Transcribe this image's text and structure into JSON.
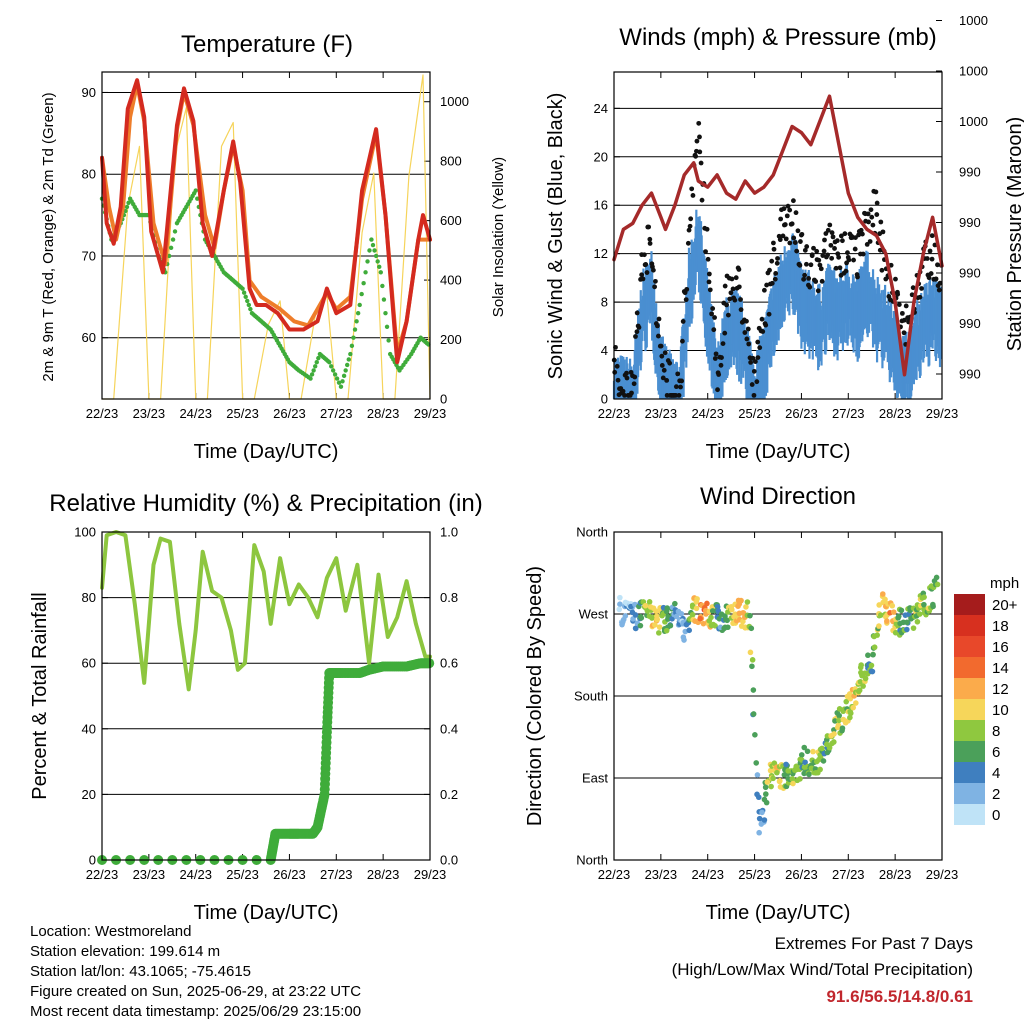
{
  "panels": {
    "temperature": {
      "title": "Temperature (F)",
      "left_label": "2m & 9m T (Red, Orange) & 2m Td (Green)",
      "right_label": "Solar Insolation (Yellow)",
      "x_label": "Time (Day/UTC)"
    },
    "wind": {
      "title": "Winds (mph) & Pressure (mb)",
      "left_label": "Sonic Wind & Gust (Blue, Black)",
      "right_label": "Station Pressure (Maroon)",
      "x_label": "Time (Day/UTC)"
    },
    "humidity": {
      "title": "Relative Humidity (%) & Precipitation (in)",
      "left_label": "Percent & Total Rainfall",
      "x_label": "Time (Day/UTC)"
    },
    "direction": {
      "title": "Wind Direction",
      "left_label": "Direction (Colored By Speed)",
      "x_label": "Time (Day/UTC)"
    }
  },
  "chart_data": [
    {
      "id": "temperature",
      "type": "line",
      "title": "Temperature (F)",
      "xlabel": "Time (Day/UTC)",
      "ylabel": "2m & 9m T (Red, Orange) & 2m Td (Green)",
      "y2label": "Solar Insolation (Yellow)",
      "x_ticks": [
        "22/23",
        "23/23",
        "24/23",
        "25/23",
        "26/23",
        "27/23",
        "28/23",
        "29/23"
      ],
      "xlim": [
        0,
        7
      ],
      "ylim": [
        52.5,
        92.5
      ],
      "y_ticks": [
        60,
        70,
        80,
        90
      ],
      "y2lim": [
        0,
        1100
      ],
      "y2_ticks": [
        0,
        200,
        400,
        600,
        800,
        1000
      ],
      "grid": true,
      "series": [
        {
          "name": "2m T",
          "color": "#d42a1f",
          "axis": "left",
          "x": [
            0,
            0.1,
            0.25,
            0.4,
            0.55,
            0.75,
            0.9,
            1.05,
            1.3,
            1.6,
            1.75,
            1.95,
            2.15,
            2.35,
            2.6,
            2.8,
            2.95,
            3.15,
            3.3,
            3.5,
            3.75,
            4.0,
            4.3,
            4.6,
            4.8,
            5.0,
            5.3,
            5.55,
            5.85,
            6.05,
            6.3,
            6.5,
            6.75,
            6.85,
            7.0
          ],
          "y": [
            82,
            74,
            71.5,
            76,
            88,
            91.5,
            87,
            73,
            68,
            86,
            90.5,
            86.5,
            74,
            70,
            78,
            84,
            79,
            66,
            64,
            64,
            63,
            61,
            61,
            62,
            66,
            63,
            64,
            78,
            85.5,
            75,
            57,
            62,
            72,
            75,
            72
          ]
        },
        {
          "name": "9m T",
          "color": "#ee7d2a",
          "axis": "left",
          "x": [
            0,
            0.15,
            0.3,
            0.45,
            0.6,
            0.75,
            0.9,
            1.1,
            1.35,
            1.6,
            1.75,
            1.95,
            2.2,
            2.4,
            2.6,
            2.8,
            3.0,
            3.15,
            3.4,
            3.8,
            4.1,
            4.4,
            4.8,
            5.0,
            5.3,
            5.55,
            5.85,
            6.05,
            6.3,
            6.5,
            6.75,
            7.0
          ],
          "y": [
            82,
            76,
            72,
            76,
            87,
            91,
            86.5,
            74,
            69,
            85.5,
            90,
            86,
            75,
            71,
            78,
            83.5,
            78,
            67,
            65,
            63.5,
            62,
            61.5,
            65.5,
            63.5,
            65,
            77,
            85,
            75,
            58,
            62,
            72,
            72
          ]
        },
        {
          "name": "2m Td",
          "color": "#3fac3a",
          "axis": "left",
          "x": [
            0,
            0.2,
            0.4,
            0.6,
            0.8,
            1.0,
            1.2,
            1.35,
            1.6,
            1.8,
            2.0,
            2.2,
            2.4,
            2.6,
            2.8,
            3.0,
            3.2,
            3.4,
            3.6,
            3.8,
            4.0,
            4.2,
            4.45,
            4.65,
            4.85,
            5.1,
            5.3,
            5.5,
            5.75,
            5.95,
            6.15,
            6.35,
            6.6,
            6.8,
            7.0
          ],
          "y": [
            77,
            72,
            74,
            77,
            75,
            75,
            70,
            68,
            74,
            76,
            78,
            72,
            70,
            68,
            67,
            66,
            63,
            62,
            61,
            59,
            57,
            56,
            55,
            58,
            57,
            54,
            58,
            64,
            72,
            68,
            58,
            56,
            58,
            60,
            59
          ]
        },
        {
          "name": "Solar Insolation",
          "color": "#f6d45b",
          "axis": "right",
          "x": [
            0.0,
            0.25,
            0.55,
            0.8,
            1.0,
            1.25,
            1.55,
            1.8,
            2.0,
            2.25,
            2.55,
            2.8,
            3.0,
            3.25,
            3.55,
            3.8,
            4.0,
            4.25,
            4.55,
            4.8,
            5.0,
            5.25,
            5.55,
            5.8,
            6.0,
            6.25,
            6.55,
            6.85,
            7.0
          ],
          "y": [
            0,
            0,
            650,
            850,
            0,
            0,
            820,
            980,
            0,
            0,
            850,
            930,
            0,
            0,
            250,
            330,
            0,
            0,
            280,
            350,
            0,
            0,
            560,
            760,
            0,
            0,
            750,
            1090,
            0
          ]
        }
      ]
    },
    {
      "id": "wind",
      "type": "scatter",
      "title": "Winds (mph) & Pressure (mb)",
      "xlabel": "Time (Day/UTC)",
      "ylabel": "Sonic Wind & Gust (Blue, Black)",
      "y2label": "Station Pressure (Maroon)",
      "x_ticks": [
        "22/23",
        "23/23",
        "24/23",
        "25/23",
        "26/23",
        "27/23",
        "28/23",
        "29/23"
      ],
      "xlim": [
        0,
        7
      ],
      "ylim": [
        0,
        27
      ],
      "y_ticks": [
        0,
        4,
        8,
        12,
        16,
        20,
        24
      ],
      "y2_tick_labels": [
        "990",
        "990",
        "990",
        "990",
        "990",
        "1000",
        "1000",
        "1000"
      ],
      "grid": true,
      "series": [
        {
          "name": "Sonic Wind",
          "color": "#4a8fd1",
          "x": [
            0,
            0.2,
            0.4,
            0.6,
            0.8,
            1.0,
            1.2,
            1.4,
            1.6,
            1.8,
            2.0,
            2.2,
            2.4,
            2.6,
            2.8,
            3.0,
            3.2,
            3.4,
            3.6,
            3.8,
            4.0,
            4.2,
            4.4,
            4.6,
            4.8,
            5.0,
            5.2,
            5.4,
            5.6,
            5.8,
            6.0,
            6.2,
            6.4,
            6.6,
            6.8,
            7.0
          ],
          "y": [
            1.5,
            1.2,
            1,
            8,
            10,
            3,
            1.5,
            1,
            10,
            14,
            8,
            2,
            6,
            7,
            5,
            1,
            4,
            8,
            10,
            12,
            9,
            8,
            7,
            9,
            8,
            9,
            8,
            10,
            8,
            7,
            5,
            3,
            5,
            7,
            8,
            7
          ]
        },
        {
          "name": "Gust",
          "color": "#111111",
          "x": [
            0,
            0.2,
            0.4,
            0.6,
            0.8,
            1.0,
            1.2,
            1.4,
            1.6,
            1.8,
            2.0,
            2.2,
            2.4,
            2.6,
            2.8,
            3.0,
            3.2,
            3.4,
            3.6,
            3.8,
            4.0,
            4.2,
            4.4,
            4.6,
            4.8,
            5.0,
            5.2,
            5.4,
            5.6,
            5.8,
            6.0,
            6.2,
            6.4,
            6.6,
            6.8,
            7.0
          ],
          "y": [
            5,
            3,
            2,
            13,
            15,
            5,
            3,
            3,
            15,
            24.5,
            14,
            4,
            10,
            12,
            9,
            3,
            9,
            13,
            16,
            17,
            14,
            13,
            12,
            15,
            13,
            15,
            14,
            16,
            18,
            12,
            11,
            8,
            10,
            13,
            14,
            12
          ]
        },
        {
          "name": "Station Pressure",
          "color": "#a52a2a",
          "type": "line",
          "x": [
            0,
            0.2,
            0.4,
            0.6,
            0.8,
            1.0,
            1.1,
            1.3,
            1.5,
            1.7,
            1.8,
            2.0,
            2.2,
            2.4,
            2.6,
            2.8,
            3.0,
            3.2,
            3.4,
            3.6,
            3.8,
            4.0,
            4.2,
            4.4,
            4.6,
            4.8,
            5.0,
            5.2,
            5.4,
            5.6,
            5.8,
            6.0,
            6.2,
            6.4,
            6.6,
            6.8,
            7.0
          ],
          "y": [
            11.5,
            14,
            14.5,
            16,
            17,
            15,
            14,
            16,
            18.5,
            19.5,
            18,
            17.5,
            18.5,
            17,
            16.5,
            18,
            17,
            17.5,
            18.5,
            20.5,
            22.5,
            22,
            21,
            23,
            25,
            21,
            17,
            15,
            14,
            13.5,
            12,
            8,
            2,
            8,
            12,
            15,
            11
          ]
        }
      ]
    },
    {
      "id": "humidity",
      "type": "line",
      "title": "Relative Humidity (%) & Precipitation (in)",
      "xlabel": "Time (Day/UTC)",
      "ylabel": "Percent & Total Rainfall",
      "x_ticks": [
        "22/23",
        "23/23",
        "24/23",
        "25/23",
        "26/23",
        "27/23",
        "28/23",
        "29/23"
      ],
      "xlim": [
        0,
        7
      ],
      "ylim": [
        0,
        100
      ],
      "y_ticks": [
        0,
        20,
        40,
        60,
        80,
        100
      ],
      "y2lim": [
        0,
        1.0
      ],
      "y2_ticks": [
        "0.0",
        "0.2",
        "0.4",
        "0.6",
        "0.8",
        "1.0"
      ],
      "grid": true,
      "series": [
        {
          "name": "Relative Humidity",
          "color": "#8dc63f",
          "axis": "left",
          "x": [
            0,
            0.1,
            0.3,
            0.5,
            0.7,
            0.9,
            1.1,
            1.25,
            1.45,
            1.65,
            1.85,
            2.0,
            2.15,
            2.35,
            2.55,
            2.75,
            2.9,
            3.05,
            3.25,
            3.45,
            3.6,
            3.8,
            4.0,
            4.2,
            4.4,
            4.6,
            4.8,
            5.0,
            5.2,
            5.45,
            5.7,
            5.9,
            6.1,
            6.3,
            6.5,
            6.7,
            6.9,
            7.0
          ],
          "y": [
            83,
            99,
            100,
            99,
            78,
            54,
            90,
            98,
            97,
            72,
            52,
            70,
            94,
            82,
            80,
            70,
            58,
            60,
            96,
            88,
            72,
            92,
            78,
            84,
            80,
            74,
            86,
            92,
            76,
            90,
            60,
            87,
            68,
            74,
            85,
            72,
            62,
            62
          ]
        },
        {
          "name": "Total Rainfall",
          "color": "#3fac3a",
          "axis": "right",
          "x": [
            0,
            3.6,
            3.7,
            4.0,
            4.2,
            4.5,
            4.6,
            4.75,
            4.8,
            4.85,
            5.1,
            5.5,
            5.7,
            6.0,
            6.5,
            6.8,
            7.0
          ],
          "y": [
            0.0,
            0.0,
            0.08,
            0.08,
            0.08,
            0.08,
            0.1,
            0.2,
            0.39,
            0.57,
            0.57,
            0.57,
            0.58,
            0.59,
            0.59,
            0.6,
            0.6
          ]
        }
      ]
    },
    {
      "id": "direction",
      "type": "scatter",
      "title": "Wind Direction",
      "xlabel": "Time (Day/UTC)",
      "ylabel": "Direction (Colored By Speed)",
      "x_ticks": [
        "22/23",
        "23/23",
        "24/23",
        "25/23",
        "26/23",
        "27/23",
        "28/23",
        "29/23"
      ],
      "xlim": [
        0,
        7
      ],
      "ylim": [
        0,
        360
      ],
      "y_ticks": [
        0,
        90,
        180,
        270,
        360
      ],
      "y_tick_labels": [
        "North",
        "East",
        "South",
        "West",
        "North"
      ],
      "grid": true,
      "legend": {
        "title": "mph",
        "position": "right",
        "labels": [
          "20+",
          "18",
          "16",
          "14",
          "12",
          "10",
          "8",
          "6",
          "4",
          "2",
          "0"
        ],
        "colors": [
          "#a51c1c",
          "#d7301f",
          "#e8482a",
          "#f26a2e",
          "#fbab4b",
          "#f6d65a",
          "#8fc83f",
          "#4ba05a",
          "#3f7fbf",
          "#7fb3e3",
          "#bfe3f7"
        ]
      },
      "series": [
        {
          "name": "Direction",
          "x": [
            0.1,
            0.3,
            0.5,
            0.7,
            0.9,
            1.1,
            1.3,
            1.5,
            1.7,
            1.9,
            2.1,
            2.3,
            2.5,
            2.7,
            2.9,
            3.1,
            3.3,
            3.5,
            3.7,
            3.9,
            4.1,
            4.3,
            4.5,
            4.7,
            4.9,
            5.1,
            5.3,
            5.5,
            5.7,
            5.9,
            6.1,
            6.3,
            6.5,
            6.7,
            6.9
          ],
          "y": [
            275,
            270,
            265,
            280,
            260,
            265,
            270,
            250,
            275,
            272,
            268,
            262,
            275,
            270,
            268,
            30,
            95,
            90,
            92,
            100,
            110,
            105,
            120,
            140,
            160,
            175,
            200,
            220,
            280,
            270,
            260,
            265,
            275,
            285,
            300
          ],
          "speed": [
            2,
            2,
            4,
            8,
            10,
            6,
            4,
            2,
            10,
            14,
            8,
            4,
            10,
            12,
            8,
            2,
            8,
            10,
            6,
            8,
            6,
            8,
            6,
            8,
            8,
            10,
            8,
            6,
            10,
            12,
            6,
            6,
            8,
            8,
            6
          ]
        }
      ]
    }
  ],
  "info": {
    "location": "Location: Westmoreland",
    "elevation": "Station elevation: 199.614 m",
    "latlon": "Station lat/lon: 43.1065; -75.4615",
    "created": "Figure created on Sun, 2025-06-29, at 23:22 UTC",
    "recent": "Most recent data timestamp: 2025/06/29 23:15:00"
  },
  "extremes": {
    "heading": "Extremes For Past 7 Days",
    "subheading": "(High/Low/Max Wind/Total Precipitation)",
    "values": "91.6/56.5/14.8/0.61"
  }
}
